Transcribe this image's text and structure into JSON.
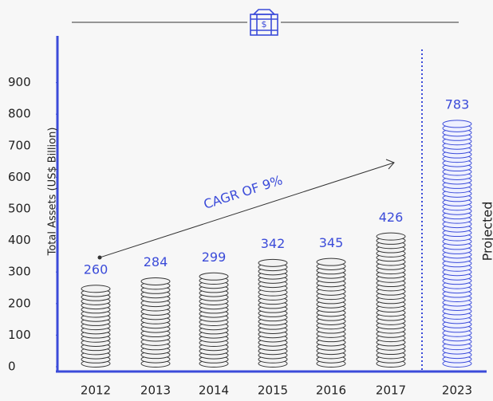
{
  "chart_data": {
    "type": "bar",
    "y_label": "Total Assets (US$ Billion)",
    "categories": [
      "2012",
      "2013",
      "2014",
      "2015",
      "2016",
      "2017",
      "2023"
    ],
    "values": [
      260,
      284,
      299,
      342,
      345,
      426,
      783
    ],
    "colors": [
      "#333333",
      "#333333",
      "#333333",
      "#333333",
      "#333333",
      "#333333",
      "#3b4bd9"
    ],
    "ylim": [
      0,
      1000
    ],
    "yticks": [
      0,
      100,
      200,
      300,
      400,
      500,
      600,
      700,
      800,
      900
    ],
    "annotations": [
      "CAGR OF 9%",
      "Projected"
    ]
  }
}
